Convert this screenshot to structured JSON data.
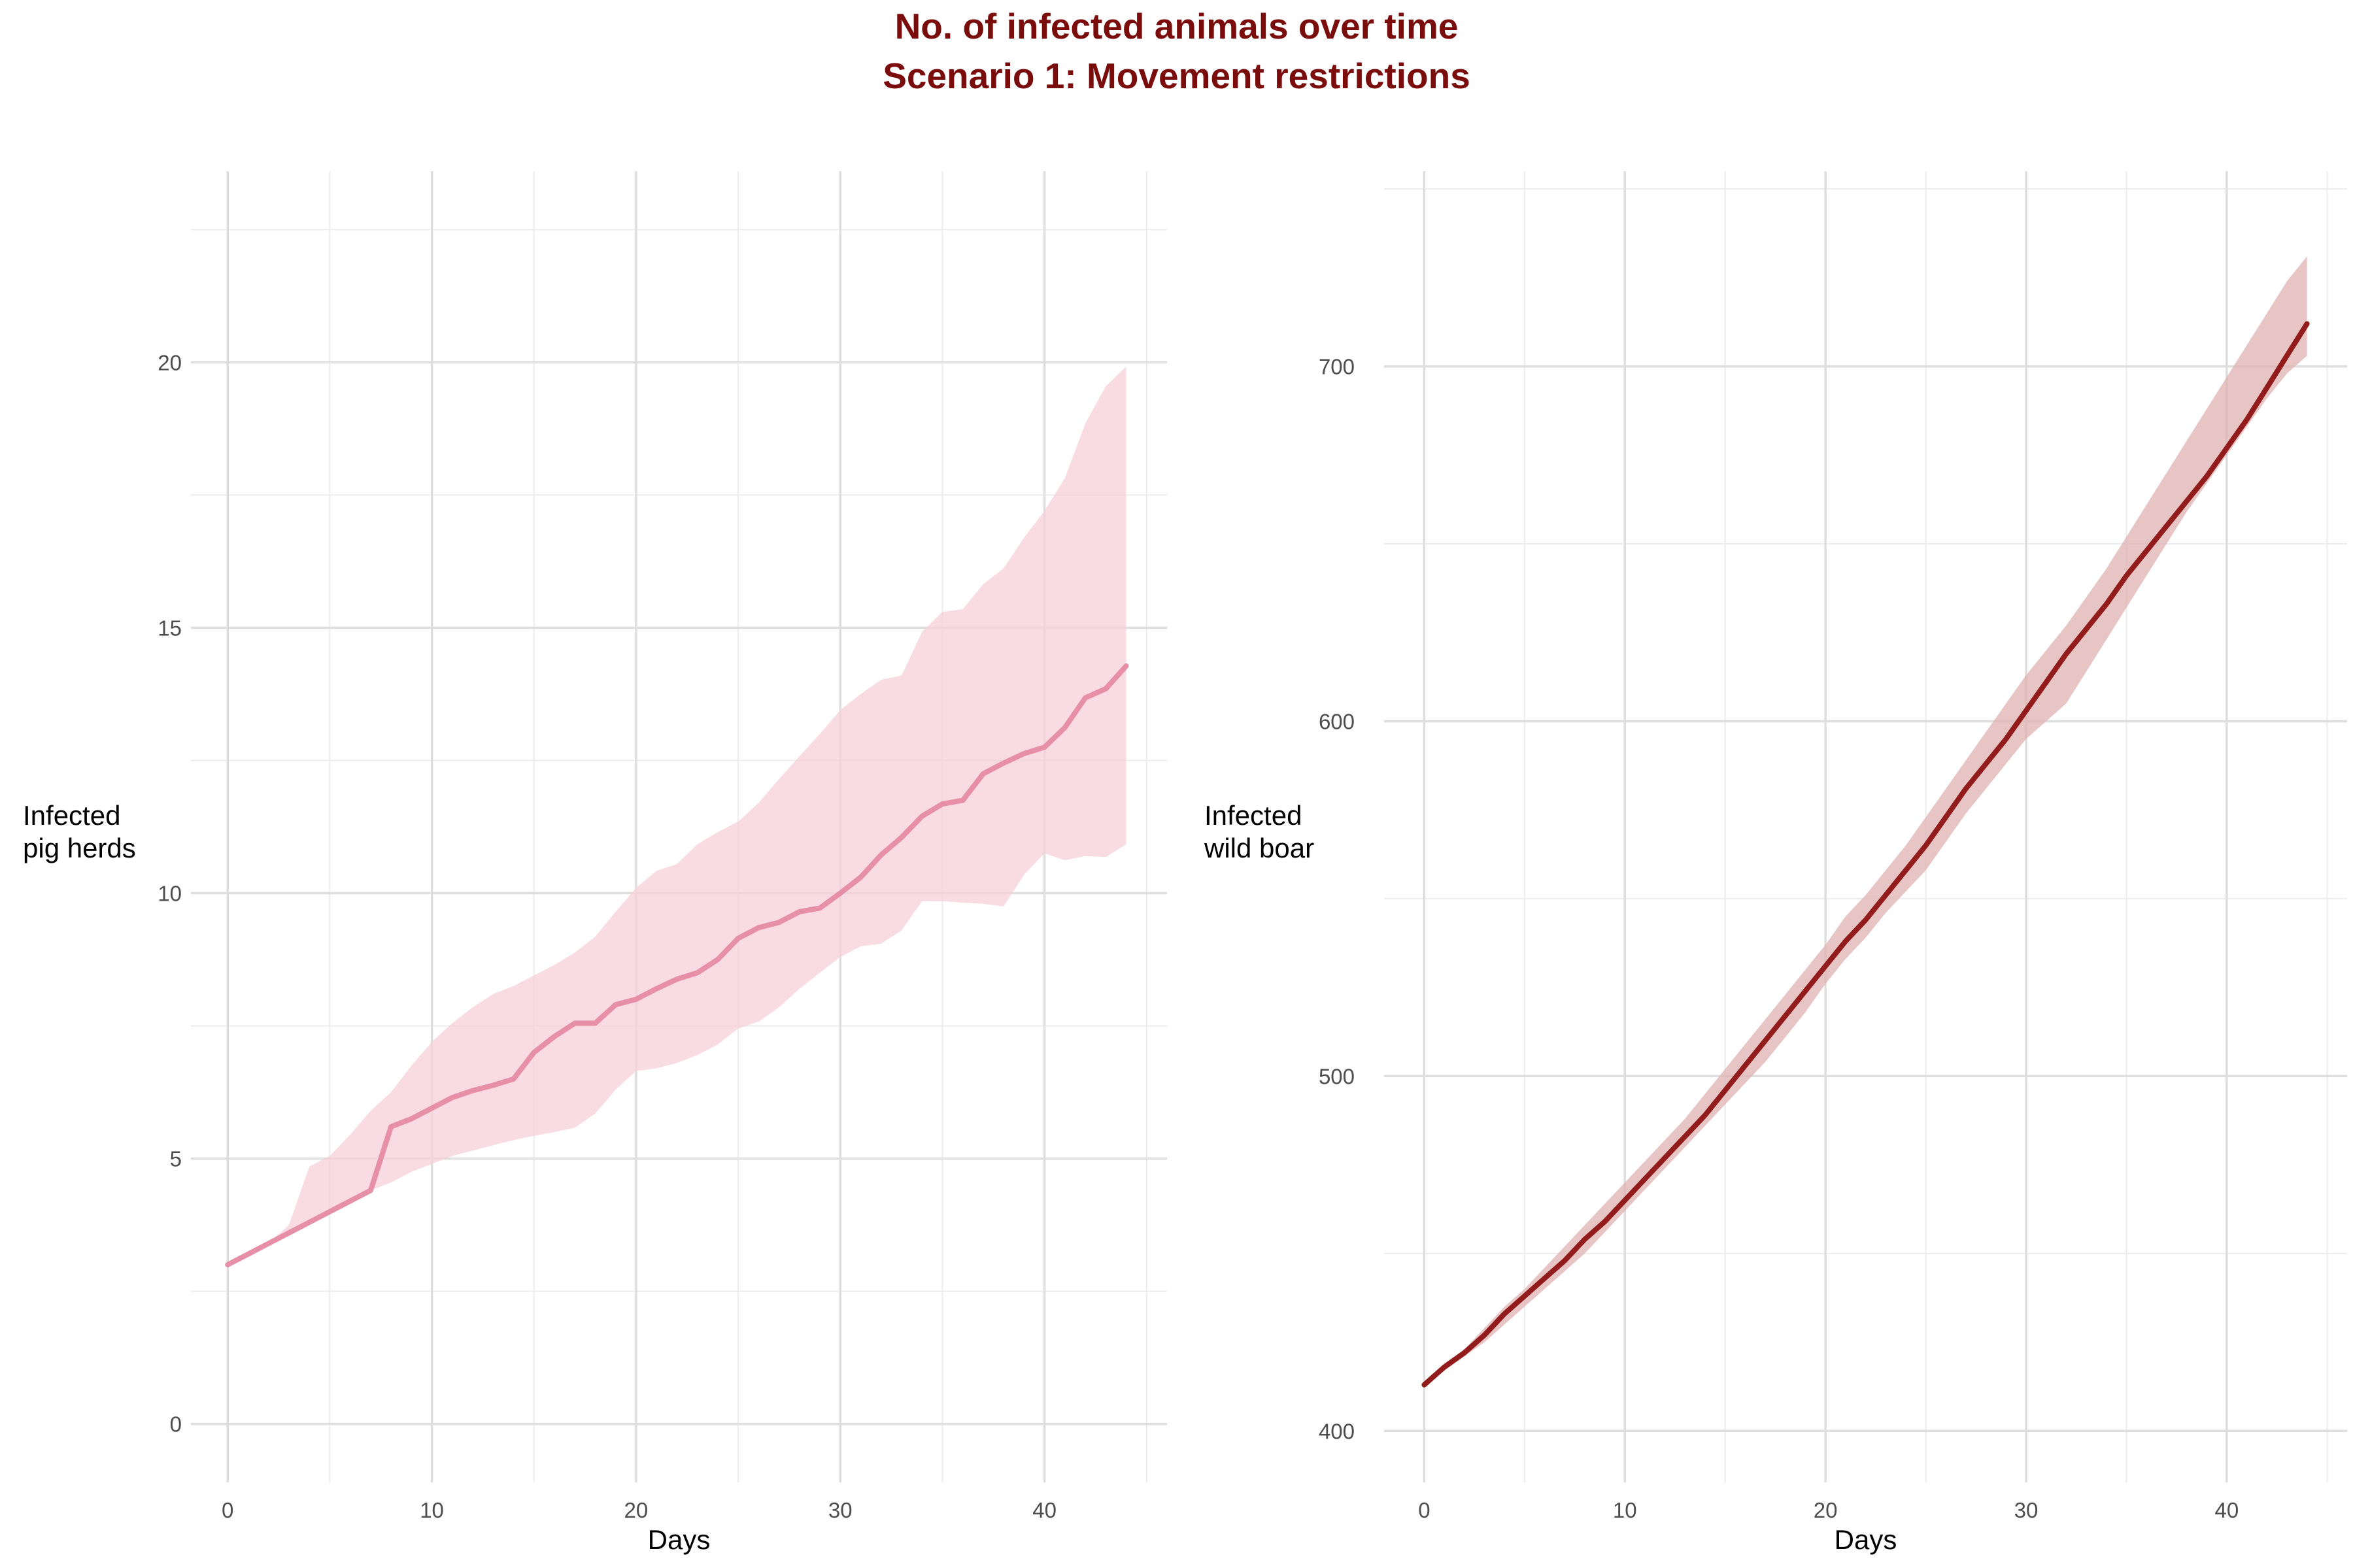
{
  "title": {
    "line1": "No. of infected animals over time",
    "line2": "Scenario 1: Movement restrictions"
  },
  "chart_data": [
    {
      "type": "line",
      "series": [
        {
          "color": "#e68fa6",
          "band_color": "#f5cfd9",
          "x": [
            0,
            1,
            2,
            3,
            4,
            5,
            6,
            7,
            8,
            9,
            10,
            11,
            12,
            13,
            14,
            15,
            16,
            17,
            18,
            19,
            20,
            21,
            22,
            23,
            24,
            25,
            26,
            27,
            28,
            29,
            30,
            31,
            32,
            33,
            34,
            35,
            36,
            37,
            38,
            39,
            40,
            41,
            42,
            43,
            44
          ],
          "values": [
            3,
            3.2,
            3.4,
            3.6,
            3.8,
            4.0,
            4.2,
            4.4,
            5.6,
            5.75,
            5.95,
            6.15,
            6.28,
            6.38,
            6.5,
            7.0,
            7.3,
            7.55,
            7.55,
            7.9,
            8.0,
            8.2,
            8.38,
            8.5,
            8.75,
            9.15,
            9.35,
            9.45,
            9.65,
            9.72,
            10.0,
            10.3,
            10.72,
            11.05,
            11.45,
            11.68,
            11.75,
            12.25,
            12.45,
            12.63,
            12.75,
            13.12,
            13.68,
            13.85,
            14.28
          ],
          "lower": [
            3,
            3.2,
            3.4,
            3.6,
            3.8,
            4.0,
            4.2,
            4.4,
            4.55,
            4.75,
            4.9,
            5.05,
            5.15,
            5.25,
            5.35,
            5.43,
            5.5,
            5.58,
            5.85,
            6.3,
            6.65,
            6.7,
            6.8,
            6.95,
            7.15,
            7.45,
            7.58,
            7.85,
            8.2,
            8.5,
            8.8,
            9.0,
            9.05,
            9.3,
            9.85,
            9.85,
            9.82,
            9.8,
            9.75,
            10.35,
            10.75,
            10.62,
            10.7,
            10.68,
            10.92
          ],
          "upper": [
            3,
            3.2,
            3.4,
            3.75,
            4.85,
            5.05,
            5.45,
            5.9,
            6.25,
            6.75,
            7.2,
            7.55,
            7.85,
            8.1,
            8.25,
            8.45,
            8.65,
            8.88,
            9.18,
            9.65,
            10.1,
            10.42,
            10.55,
            10.92,
            11.15,
            11.35,
            11.7,
            12.15,
            12.58,
            13.0,
            13.45,
            13.75,
            14.02,
            14.1,
            14.92,
            15.3,
            15.35,
            15.82,
            16.12,
            16.7,
            17.2,
            17.82,
            18.85,
            19.55,
            19.92
          ]
        }
      ],
      "xlabel": "Days",
      "ylabel": "Infected\npig herds",
      "xlim": [
        -1.8,
        46
      ],
      "ylim": [
        -1.1,
        23.6
      ],
      "x_ticks": [
        0,
        10,
        20,
        30,
        40
      ],
      "y_ticks": [
        0,
        5,
        10,
        15,
        20
      ],
      "grid": true,
      "legend": "none"
    },
    {
      "type": "line",
      "series": [
        {
          "color": "#921c1c",
          "band_color": "#e0b1b1",
          "x": [
            0,
            1,
            2,
            3,
            4,
            5,
            6,
            7,
            8,
            9,
            10,
            11,
            12,
            13,
            14,
            15,
            16,
            17,
            18,
            19,
            20,
            21,
            22,
            23,
            24,
            25,
            26,
            27,
            28,
            29,
            30,
            31,
            32,
            33,
            34,
            35,
            36,
            37,
            38,
            39,
            40,
            41,
            42,
            43,
            44
          ],
          "values": [
            413,
            418,
            422,
            427,
            433,
            438,
            443,
            448,
            454,
            459,
            465,
            471,
            477,
            483,
            489,
            496,
            503,
            510,
            517,
            524,
            531,
            538,
            544,
            551,
            558,
            565,
            573,
            581,
            588,
            595,
            603,
            611,
            619,
            626,
            633,
            641,
            648,
            655,
            662,
            669,
            677,
            685,
            694,
            703,
            712
          ],
          "lower": [
            413,
            417,
            421,
            425,
            430,
            435,
            440,
            445,
            450,
            456,
            462,
            468,
            474,
            480,
            486,
            492,
            498,
            504,
            511,
            518,
            526,
            533,
            539,
            546,
            552,
            558,
            566,
            574,
            581,
            588,
            595,
            600,
            605,
            614,
            623,
            632,
            641,
            650,
            659,
            667,
            675,
            683,
            691,
            698,
            703
          ],
          "upper": [
            413,
            419,
            423,
            429,
            435,
            440,
            446,
            452,
            458,
            464,
            470,
            476,
            482,
            488,
            495,
            502,
            509,
            516,
            523,
            530,
            537,
            545,
            551,
            558,
            565,
            573,
            581,
            589,
            597,
            605,
            613,
            620,
            627,
            635,
            643,
            652,
            661,
            670,
            679,
            688,
            697,
            706,
            715,
            724,
            731
          ]
        }
      ],
      "xlabel": "Days",
      "ylabel": "Infected\nwild boar",
      "xlim": [
        -2,
        46
      ],
      "ylim": [
        385.5,
        755
      ],
      "x_ticks": [
        0,
        10,
        20,
        30,
        40
      ],
      "y_ticks": [
        400,
        500,
        600,
        700
      ],
      "grid": true,
      "legend": "none"
    }
  ]
}
